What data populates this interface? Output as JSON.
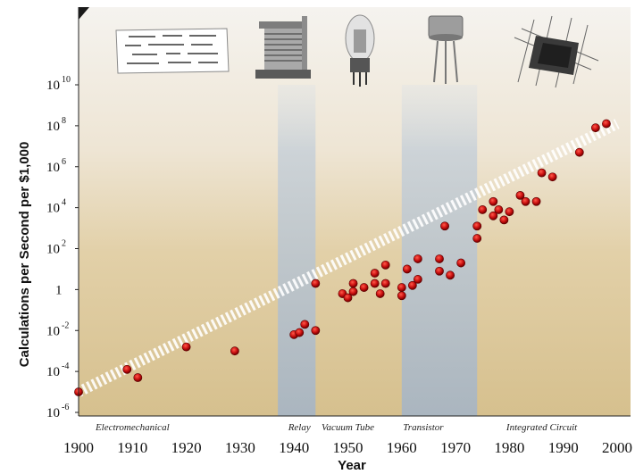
{
  "chart_data": {
    "type": "scatter",
    "title": "",
    "xlabel": "Year",
    "ylabel": "Calculations per Second per $1,000",
    "xlim": [
      1900,
      2000
    ],
    "ylim_log10": [
      -6,
      10
    ],
    "y_scale": "log",
    "x_ticks": [
      "1900",
      "1910",
      "1920",
      "1930",
      "1940",
      "1950",
      "1960",
      "1970",
      "1980",
      "1990",
      "2000"
    ],
    "y_ticks": [
      {
        "base": "10",
        "exp": "10",
        "value": 10
      },
      {
        "base": "10",
        "exp": "8",
        "value": 8
      },
      {
        "base": "10",
        "exp": "6",
        "value": 6
      },
      {
        "base": "10",
        "exp": "4",
        "value": 4
      },
      {
        "base": "10",
        "exp": "2",
        "value": 2
      },
      {
        "base": "1",
        "exp": "",
        "value": 0
      },
      {
        "base": "10",
        "exp": "-2",
        "value": -2
      },
      {
        "base": "10",
        "exp": "-4",
        "value": -4
      },
      {
        "base": "10",
        "exp": "-6",
        "value": -6
      }
    ],
    "eras": [
      {
        "label": "Electromechanical",
        "year": 1910
      },
      {
        "label": "Relay",
        "year": 1941
      },
      {
        "label": "Vacuum Tube",
        "year": 1950
      },
      {
        "label": "Transistor",
        "year": 1964
      },
      {
        "label": "Integrated Circuit",
        "year": 1986
      }
    ],
    "highlight_bands": [
      [
        1937,
        1944
      ],
      [
        1960,
        1974
      ]
    ],
    "trend_line": {
      "x": [
        1900,
        2000
      ],
      "y_log10": [
        -5.0,
        8.1
      ]
    },
    "points_log10": [
      [
        1900,
        -5.0
      ],
      [
        1909,
        -3.9
      ],
      [
        1911,
        -4.3
      ],
      [
        1920,
        -2.8
      ],
      [
        1929,
        -3.0
      ],
      [
        1940,
        -2.2
      ],
      [
        1941,
        -2.1
      ],
      [
        1942,
        -1.7
      ],
      [
        1944,
        -2.0
      ],
      [
        1944,
        0.3
      ],
      [
        1949,
        -0.2
      ],
      [
        1950,
        -0.4
      ],
      [
        1951,
        0.3
      ],
      [
        1951,
        -0.1
      ],
      [
        1953,
        0.1
      ],
      [
        1955,
        0.3
      ],
      [
        1955,
        0.8
      ],
      [
        1956,
        -0.2
      ],
      [
        1957,
        1.2
      ],
      [
        1957,
        0.3
      ],
      [
        1960,
        -0.3
      ],
      [
        1960,
        0.1
      ],
      [
        1961,
        1.0
      ],
      [
        1962,
        0.2
      ],
      [
        1963,
        1.5
      ],
      [
        1963,
        0.5
      ],
      [
        1967,
        1.5
      ],
      [
        1967,
        0.9
      ],
      [
        1968,
        3.1
      ],
      [
        1969,
        0.7
      ],
      [
        1971,
        1.3
      ],
      [
        1974,
        2.5
      ],
      [
        1974,
        3.1
      ],
      [
        1975,
        3.9
      ],
      [
        1977,
        4.3
      ],
      [
        1977,
        3.6
      ],
      [
        1978,
        3.9
      ],
      [
        1979,
        3.4
      ],
      [
        1980,
        3.8
      ],
      [
        1982,
        4.6
      ],
      [
        1983,
        4.3
      ],
      [
        1985,
        4.3
      ],
      [
        1986,
        5.7
      ],
      [
        1988,
        5.5
      ],
      [
        1993,
        6.7
      ],
      [
        1996,
        7.9
      ],
      [
        1998,
        8.1
      ]
    ]
  },
  "colors": {
    "point": "#cc1111",
    "band": "#b6c2cd",
    "bg_top": "#f4f1ec",
    "bg_bottom": "#d9c59a"
  },
  "icons": [
    "punch-card-icon",
    "relay-icon",
    "vacuum-tube-icon",
    "transistor-icon",
    "integrated-circuit-icon"
  ]
}
